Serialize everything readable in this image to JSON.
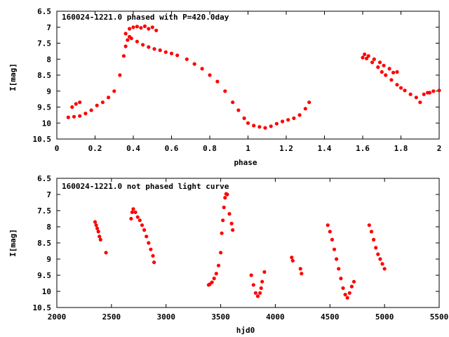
{
  "chart_data": [
    {
      "type": "scatter",
      "title": "160024-1221.0 phased with P=420.0day",
      "xlabel": "phase",
      "ylabel": "I[mag]",
      "xlim": [
        0,
        2
      ],
      "ylim": [
        10.5,
        6.5
      ],
      "y_inverted": true,
      "grid": false,
      "xticks": [
        "0",
        "0.2",
        "0.4",
        "0.6",
        "0.8",
        "1",
        "1.2",
        "1.4",
        "1.6",
        "1.8",
        "2"
      ],
      "yticks": [
        "6.5",
        "7",
        "7.5",
        "8",
        "8.5",
        "9",
        "9.5",
        "10",
        "10.5"
      ],
      "color": "#ff0000",
      "series": [
        {
          "x": [
            0.06,
            0.09,
            0.12,
            0.15,
            0.18,
            0.21,
            0.24,
            0.27,
            0.3,
            0.33,
            0.35,
            0.36,
            0.37,
            0.38,
            0.39,
            0.42,
            0.45,
            0.48,
            0.51,
            0.54,
            0.57,
            0.6,
            0.63,
            0.68,
            0.72,
            0.76,
            0.8,
            0.84,
            0.88,
            0.92,
            0.95,
            0.98,
            1.0,
            1.03,
            1.06,
            1.09,
            1.12,
            1.15,
            1.18,
            1.21,
            1.24,
            1.27,
            1.3,
            1.32,
            1.6,
            1.62,
            1.65,
            1.68,
            1.7,
            1.72,
            1.75,
            1.78,
            1.8,
            1.82,
            1.85,
            1.88,
            1.9,
            1.92,
            1.94
          ],
          "y": [
            9.82,
            9.8,
            9.78,
            9.7,
            9.6,
            9.45,
            9.35,
            9.2,
            9.0,
            8.5,
            7.9,
            7.6,
            7.4,
            7.3,
            7.35,
            7.45,
            7.55,
            7.62,
            7.68,
            7.72,
            7.78,
            7.82,
            7.88,
            8.0,
            8.15,
            8.3,
            8.5,
            8.7,
            9.0,
            9.35,
            9.6,
            9.85,
            10.0,
            10.08,
            10.12,
            10.15,
            10.1,
            10.02,
            9.95,
            9.9,
            9.85,
            9.75,
            9.55,
            9.35,
            7.95,
            7.98,
            8.1,
            8.25,
            8.4,
            8.5,
            8.65,
            8.8,
            8.9,
            8.98,
            9.1,
            9.2,
            9.35,
            9.1,
            9.05
          ]
        },
        {
          "x": [
            0.08,
            0.1,
            0.12,
            0.36,
            0.38,
            0.4,
            0.42,
            0.44,
            0.46,
            0.48,
            0.5,
            0.52,
            1.61,
            1.63,
            1.66,
            1.69,
            1.71,
            1.74,
            1.76,
            1.78,
            1.95,
            1.97,
            2.0
          ],
          "y": [
            9.5,
            9.4,
            9.35,
            7.2,
            7.05,
            7.0,
            6.98,
            7.02,
            6.97,
            7.05,
            7.0,
            7.1,
            7.85,
            7.9,
            8.0,
            8.1,
            8.2,
            8.3,
            8.42,
            8.4,
            9.05,
            9.0,
            8.98
          ]
        }
      ]
    },
    {
      "type": "scatter",
      "title": "160024-1221.0 not phased light curve",
      "xlabel": "hjd0",
      "ylabel": "I[mag]",
      "xlim": [
        2000,
        5500
      ],
      "ylim": [
        10.5,
        6.5
      ],
      "y_inverted": true,
      "grid": false,
      "xticks": [
        "2000",
        "2500",
        "3000",
        "3500",
        "4000",
        "4500",
        "5000",
        "5500"
      ],
      "yticks": [
        "6.5",
        "7",
        "7.5",
        "8",
        "8.5",
        "9",
        "9.5",
        "10",
        "10.5"
      ],
      "color": "#ff0000",
      "series": [
        {
          "x": [
            2350,
            2360,
            2370,
            2380,
            2390,
            2400,
            2450,
            2680,
            2690,
            2700,
            2720,
            2740,
            2760,
            2780,
            2800,
            2820,
            2840,
            2860,
            2880,
            2890,
            3390,
            3400,
            3420,
            3440,
            3460,
            3480,
            3500,
            3510,
            3520,
            3530,
            3540,
            3550,
            3560,
            3580,
            3600,
            3610,
            3780,
            3800,
            3820,
            3840,
            3860,
            3870,
            3880,
            3900,
            4150,
            4160,
            4230,
            4240,
            4480,
            4500,
            4520,
            4540,
            4560,
            4580,
            4600,
            4620,
            4640,
            4660,
            4680,
            4700,
            4720,
            4860,
            4880,
            4900,
            4920,
            4940,
            4960,
            4980,
            5000
          ],
          "y": [
            7.85,
            7.95,
            8.05,
            8.15,
            8.3,
            8.4,
            8.8,
            7.75,
            7.55,
            7.45,
            7.55,
            7.7,
            7.8,
            7.95,
            8.1,
            8.3,
            8.5,
            8.7,
            8.9,
            9.1,
            9.8,
            9.78,
            9.72,
            9.6,
            9.45,
            9.2,
            8.8,
            8.2,
            7.8,
            7.4,
            7.1,
            6.98,
            7.0,
            7.6,
            7.9,
            8.1,
            9.5,
            9.8,
            10.05,
            10.15,
            10.05,
            9.9,
            9.7,
            9.4,
            8.95,
            9.05,
            9.3,
            9.45,
            7.95,
            8.15,
            8.4,
            8.7,
            9.0,
            9.3,
            9.6,
            9.9,
            10.1,
            10.2,
            10.05,
            9.85,
            9.7,
            7.95,
            8.15,
            8.4,
            8.65,
            8.85,
            9.0,
            9.15,
            9.3
          ]
        }
      ]
    }
  ]
}
